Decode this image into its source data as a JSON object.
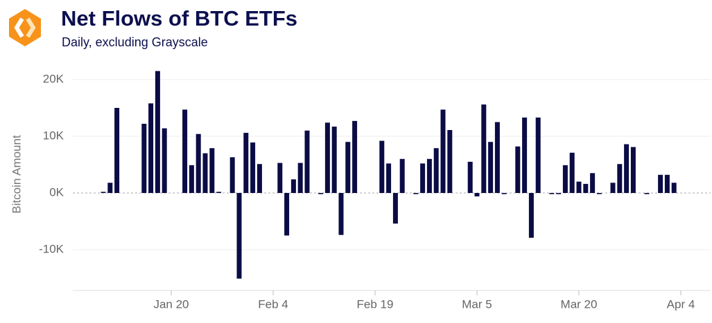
{
  "chart_data": {
    "type": "bar",
    "title": "Net Flows of BTC ETFs",
    "subtitle": "Daily, excluding Grayscale",
    "y_label": "Bitcoin Amount",
    "color": "#0b0c45",
    "grid": true,
    "ylim": [
      -17000,
      22000
    ],
    "yticks": [
      {
        "value": -10000,
        "label": "-10K"
      },
      {
        "value": 0,
        "label": "0K"
      },
      {
        "value": 10000,
        "label": "10K"
      },
      {
        "value": 20000,
        "label": "20K"
      }
    ],
    "xticks": [
      "Jan 20",
      "Feb 4",
      "Feb 19",
      "Mar 5",
      "Mar 20",
      "Apr 4"
    ],
    "x": [
      "Jan 10",
      "Jan 11",
      "Jan 12",
      "Jan 16",
      "Jan 17",
      "Jan 18",
      "Jan 19",
      "Jan 22",
      "Jan 23",
      "Jan 24",
      "Jan 25",
      "Jan 26",
      "Jan 27",
      "Jan 29",
      "Jan 30",
      "Jan 31",
      "Feb 1",
      "Feb 2",
      "Feb 5",
      "Feb 6",
      "Feb 7",
      "Feb 8",
      "Feb 9",
      "Feb 11",
      "Feb 12",
      "Feb 13",
      "Feb 14",
      "Feb 15",
      "Feb 16",
      "Feb 20",
      "Feb 21",
      "Feb 22",
      "Feb 23",
      "Feb 25",
      "Feb 26",
      "Feb 27",
      "Feb 28",
      "Feb 29",
      "Mar 1",
      "Mar 4",
      "Mar 5",
      "Mar 6",
      "Mar 7",
      "Mar 8",
      "Mar 9",
      "Mar 11",
      "Mar 12",
      "Mar 13",
      "Mar 14",
      "Mar 16",
      "Mar 17",
      "Mar 18",
      "Mar 19",
      "Mar 20",
      "Mar 21",
      "Mar 22",
      "Mar 23",
      "Mar 25",
      "Mar 26",
      "Mar 27",
      "Mar 28",
      "Mar 30",
      "Apr 1",
      "Apr 2",
      "Apr 3"
    ],
    "values": [
      200,
      1800,
      15000,
      12200,
      15800,
      21500,
      11400,
      14700,
      4900,
      10400,
      7000,
      7900,
      200,
      6300,
      -15100,
      10600,
      8900,
      5100,
      5300,
      -7500,
      2400,
      5300,
      11000,
      -200,
      12400,
      11700,
      -7400,
      9000,
      12700,
      9200,
      5200,
      -5400,
      6000,
      -200,
      5200,
      6000,
      7900,
      14700,
      11100,
      5500,
      -600,
      15600,
      9000,
      12500,
      -200,
      8200,
      13300,
      -7900,
      13300,
      -200,
      -200,
      4900,
      7100,
      2000,
      1600,
      3500,
      -200,
      1800,
      5100,
      8600,
      8100,
      -200,
      3200,
      3200,
      1800
    ]
  }
}
